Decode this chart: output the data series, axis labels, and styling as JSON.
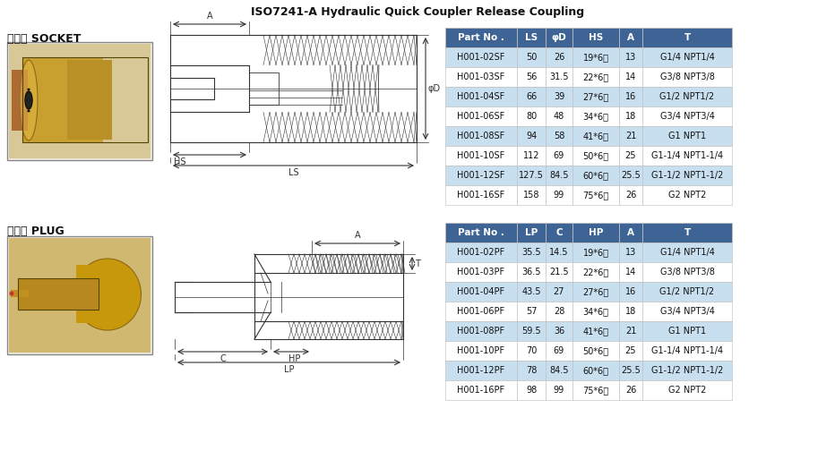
{
  "title": "ISO7241-A Hydraulic Quick Coupler Release Coupling",
  "socket_label": "每插座 SOCKET",
  "plug_label": "公插头 PLUG",
  "table1_header": [
    "Part No .",
    "LS",
    "φD",
    "HS",
    "A",
    "T"
  ],
  "table1_rows": [
    [
      "H001-02SF",
      "50",
      "26",
      "19*6角",
      "13",
      "G1/4 NPT1/4"
    ],
    [
      "H001-03SF",
      "56",
      "31.5",
      "22*6角",
      "14",
      "G3/8 NPT3/8"
    ],
    [
      "H001-04SF",
      "66",
      "39",
      "27*6角",
      "16",
      "G1/2 NPT1/2"
    ],
    [
      "H001-06SF",
      "80",
      "48",
      "34*6角",
      "18",
      "G3/4 NPT3/4"
    ],
    [
      "H001-08SF",
      "94",
      "58",
      "41*6角",
      "21",
      "G1 NPT1"
    ],
    [
      "H001-10SF",
      "112",
      "69",
      "50*6角",
      "25",
      "G1-1/4 NPT1-1/4"
    ],
    [
      "H001-12SF",
      "127.5",
      "84.5",
      "60*6角",
      "25.5",
      "G1-1/2 NPT1-1/2"
    ],
    [
      "H001-16SF",
      "158",
      "99",
      "75*6角",
      "26",
      "G2 NPT2"
    ]
  ],
  "table2_header": [
    "Part No .",
    "LP",
    "C",
    "HP",
    "A",
    "T"
  ],
  "table2_rows": [
    [
      "H001-02PF",
      "35.5",
      "14.5",
      "19*6角",
      "13",
      "G1/4 NPT1/4"
    ],
    [
      "H001-03PF",
      "36.5",
      "21.5",
      "22*6角",
      "14",
      "G3/8 NPT3/8"
    ],
    [
      "H001-04PF",
      "43.5",
      "27",
      "27*6角",
      "16",
      "G1/2 NPT1/2"
    ],
    [
      "H001-06PF",
      "57",
      "28",
      "34*6角",
      "18",
      "G3/4 NPT3/4"
    ],
    [
      "H001-08PF",
      "59.5",
      "36",
      "41*6角",
      "21",
      "G1 NPT1"
    ],
    [
      "H001-10PF",
      "70",
      "69",
      "50*6角",
      "25",
      "G1-1/4 NPT1-1/4"
    ],
    [
      "H001-12PF",
      "78",
      "84.5",
      "60*6角",
      "25.5",
      "G1-1/2 NPT1-1/2"
    ],
    [
      "H001-16PF",
      "98",
      "99",
      "75*6角",
      "26",
      "G2 NPT2"
    ]
  ],
  "header_bg": "#3d6494",
  "header_fg": "#ffffff",
  "row_bg_light": "#c8dff0",
  "row_bg_white": "#ffffff",
  "table_text_color": "#111111",
  "border_color": "#bbbbbb",
  "bg_color": "#ffffff",
  "text_color": "#111111",
  "line_color": "#333333",
  "photo_bg_socket": "#c8b890",
  "photo_bg_plug": "#c8b060"
}
